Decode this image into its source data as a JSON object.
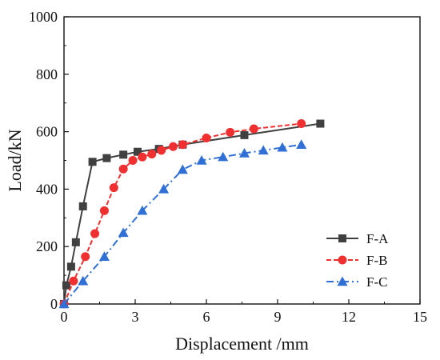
{
  "chart_data": {
    "type": "line",
    "xlabel": "Displacement /mm",
    "ylabel": "Load/kN",
    "xlim": [
      0,
      15
    ],
    "ylim": [
      0,
      1000
    ],
    "xticks": [
      0,
      3,
      6,
      9,
      12,
      15
    ],
    "yticks": [
      0,
      200,
      400,
      600,
      800,
      1000
    ],
    "grid": false,
    "legend_position": "bottom-right",
    "series": [
      {
        "name": "F-A",
        "color": "#404040",
        "marker": "square",
        "dash": "solid",
        "points": [
          [
            0,
            0
          ],
          [
            0.1,
            65
          ],
          [
            0.3,
            130
          ],
          [
            0.5,
            215
          ],
          [
            0.8,
            340
          ],
          [
            1.2,
            495
          ],
          [
            1.8,
            508
          ],
          [
            2.5,
            520
          ],
          [
            3.1,
            530
          ],
          [
            4.0,
            540
          ],
          [
            5.0,
            555
          ],
          [
            7.6,
            588
          ],
          [
            10.8,
            628
          ]
        ]
      },
      {
        "name": "F-B",
        "color": "#f03030",
        "marker": "circle",
        "dash": "dash",
        "points": [
          [
            0,
            0
          ],
          [
            0.4,
            80
          ],
          [
            0.9,
            165
          ],
          [
            1.3,
            245
          ],
          [
            1.7,
            325
          ],
          [
            2.1,
            405
          ],
          [
            2.5,
            470
          ],
          [
            2.9,
            500
          ],
          [
            3.3,
            512
          ],
          [
            3.7,
            522
          ],
          [
            4.1,
            535
          ],
          [
            4.6,
            548
          ],
          [
            5.0,
            555
          ],
          [
            6.0,
            578
          ],
          [
            7.0,
            598
          ],
          [
            8.0,
            610
          ],
          [
            10.0,
            628
          ]
        ]
      },
      {
        "name": "F-C",
        "color": "#2f6fd6",
        "marker": "triangle",
        "dash": "dashdot",
        "points": [
          [
            0,
            0
          ],
          [
            0.8,
            80
          ],
          [
            1.7,
            165
          ],
          [
            2.5,
            248
          ],
          [
            3.3,
            325
          ],
          [
            4.2,
            400
          ],
          [
            5.0,
            468
          ],
          [
            5.8,
            500
          ],
          [
            6.7,
            512
          ],
          [
            7.6,
            525
          ],
          [
            8.4,
            535
          ],
          [
            9.2,
            545
          ],
          [
            10.0,
            555
          ]
        ]
      }
    ]
  }
}
